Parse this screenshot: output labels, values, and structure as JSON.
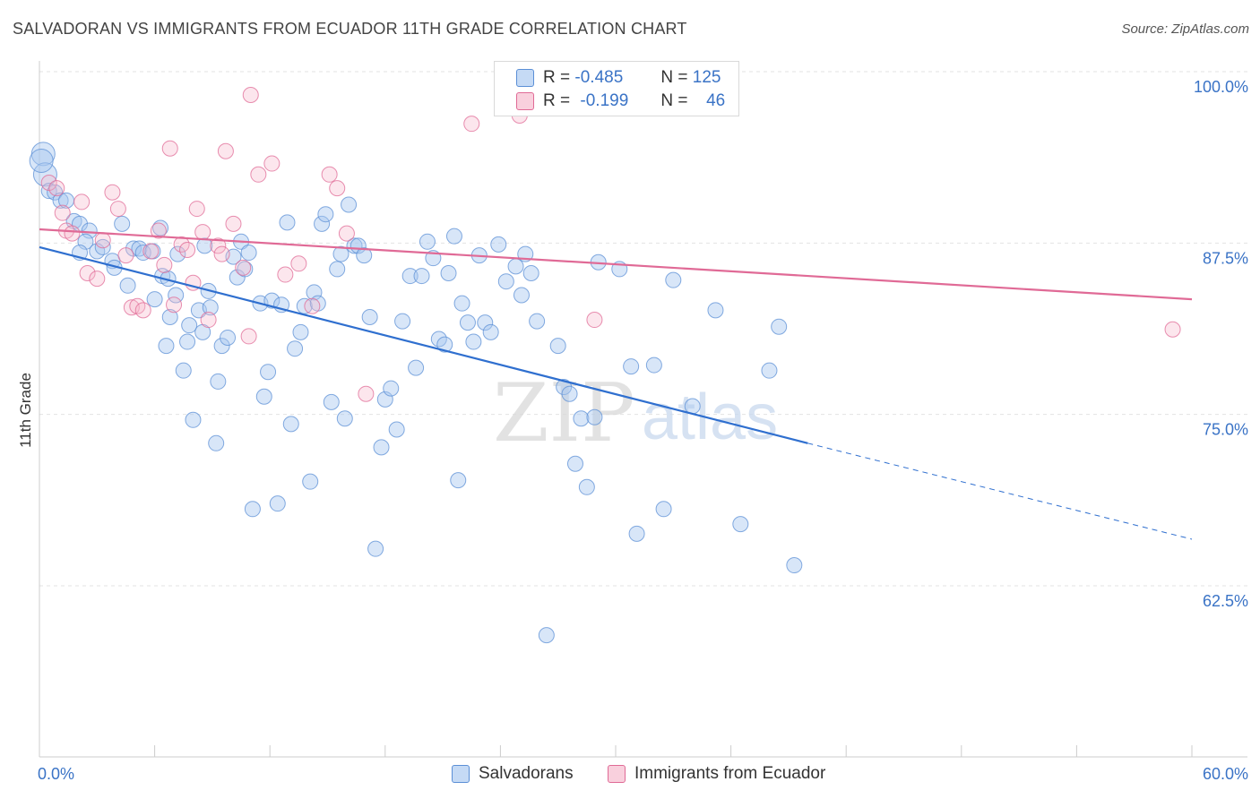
{
  "header": {
    "title": "SALVADORAN VS IMMIGRANTS FROM ECUADOR 11TH GRADE CORRELATION CHART",
    "source": "Source: ZipAtlas.com"
  },
  "watermark": {
    "zip": "ZIP",
    "atlas": "atlas"
  },
  "stats_legend": [
    {
      "r_label": "R =",
      "r_value": "-0.485",
      "n_label": "N =",
      "n_value": "125",
      "color": "#a9c8f0"
    },
    {
      "r_label": "R =",
      "r_value": "-0.199",
      "n_label": "N =",
      "n_value": "46",
      "color": "#f5b8cb"
    }
  ],
  "chart_data": {
    "type": "scatter",
    "title": "SALVADORAN VS IMMIGRANTS FROM ECUADOR 11TH GRADE CORRELATION CHART",
    "xlabel": "",
    "ylabel": "11th Grade",
    "xlim": [
      0,
      60
    ],
    "ylim": [
      50,
      102
    ],
    "x_tick_labels": [
      "0.0%",
      "60.0%"
    ],
    "y_ticks": [
      62.5,
      75.0,
      87.5,
      100.0
    ],
    "y_tick_labels": [
      "62.5%",
      "75.0%",
      "87.5%",
      "100.0%"
    ],
    "grid": true,
    "legend_position": "bottom",
    "series": [
      {
        "name": "Salvadorans",
        "color": "#5b8fd6",
        "fill": "#a9c8f0",
        "trend": {
          "x0": 0,
          "y0": 87.2,
          "x1": 40,
          "y1": 72.9,
          "dash_to_x": 60,
          "dash_to_y": 65.9
        },
        "points": [
          [
            0.2,
            94.0
          ],
          [
            0.3,
            92.5
          ],
          [
            0.5,
            91.3
          ],
          [
            0.8,
            91.2
          ],
          [
            1.1,
            90.6
          ],
          [
            1.4,
            90.6
          ],
          [
            1.8,
            89.1
          ],
          [
            2.1,
            88.9
          ],
          [
            2.6,
            88.4
          ],
          [
            2.4,
            87.6
          ],
          [
            2.1,
            86.8
          ],
          [
            3.0,
            86.9
          ],
          [
            3.3,
            87.2
          ],
          [
            3.8,
            86.2
          ],
          [
            3.9,
            85.7
          ],
          [
            4.3,
            88.9
          ],
          [
            4.6,
            84.4
          ],
          [
            4.9,
            87.1
          ],
          [
            5.2,
            87.1
          ],
          [
            5.4,
            86.8
          ],
          [
            5.9,
            86.9
          ],
          [
            6.0,
            83.4
          ],
          [
            6.3,
            88.6
          ],
          [
            6.6,
            80.0
          ],
          [
            6.4,
            85.1
          ],
          [
            6.7,
            84.9
          ],
          [
            6.8,
            82.1
          ],
          [
            7.1,
            83.7
          ],
          [
            7.2,
            86.7
          ],
          [
            7.5,
            78.2
          ],
          [
            7.7,
            80.3
          ],
          [
            7.8,
            81.5
          ],
          [
            8.0,
            74.6
          ],
          [
            8.3,
            82.6
          ],
          [
            8.5,
            81.0
          ],
          [
            8.6,
            87.3
          ],
          [
            8.8,
            84.0
          ],
          [
            8.9,
            82.8
          ],
          [
            9.2,
            72.9
          ],
          [
            9.3,
            77.4
          ],
          [
            9.5,
            80.0
          ],
          [
            9.8,
            80.6
          ],
          [
            10.1,
            86.5
          ],
          [
            10.3,
            85.0
          ],
          [
            10.5,
            87.6
          ],
          [
            10.7,
            85.6
          ],
          [
            10.9,
            86.8
          ],
          [
            11.1,
            68.1
          ],
          [
            11.5,
            83.1
          ],
          [
            11.7,
            76.3
          ],
          [
            11.9,
            78.1
          ],
          [
            12.1,
            83.3
          ],
          [
            12.4,
            68.5
          ],
          [
            12.6,
            83.0
          ],
          [
            12.9,
            89.0
          ],
          [
            13.1,
            74.3
          ],
          [
            13.3,
            79.8
          ],
          [
            13.6,
            81.0
          ],
          [
            13.8,
            82.9
          ],
          [
            14.1,
            70.1
          ],
          [
            14.3,
            83.9
          ],
          [
            14.5,
            83.1
          ],
          [
            14.7,
            88.9
          ],
          [
            14.9,
            89.6
          ],
          [
            15.2,
            75.9
          ],
          [
            15.5,
            85.6
          ],
          [
            15.7,
            86.7
          ],
          [
            15.9,
            74.7
          ],
          [
            16.1,
            90.3
          ],
          [
            16.4,
            87.3
          ],
          [
            16.6,
            87.3
          ],
          [
            16.9,
            86.6
          ],
          [
            17.2,
            82.1
          ],
          [
            17.5,
            65.2
          ],
          [
            17.8,
            72.6
          ],
          [
            18.0,
            76.1
          ],
          [
            18.3,
            76.9
          ],
          [
            18.6,
            73.9
          ],
          [
            18.9,
            81.8
          ],
          [
            19.3,
            85.1
          ],
          [
            19.6,
            78.4
          ],
          [
            19.9,
            85.1
          ],
          [
            20.2,
            87.6
          ],
          [
            20.5,
            86.4
          ],
          [
            20.8,
            80.5
          ],
          [
            21.1,
            80.1
          ],
          [
            21.3,
            85.3
          ],
          [
            21.6,
            88.0
          ],
          [
            21.8,
            70.2
          ],
          [
            22.0,
            83.1
          ],
          [
            22.3,
            81.7
          ],
          [
            22.6,
            80.3
          ],
          [
            22.9,
            86.6
          ],
          [
            23.2,
            81.7
          ],
          [
            23.5,
            81.0
          ],
          [
            23.9,
            87.4
          ],
          [
            24.3,
            84.7
          ],
          [
            24.8,
            85.8
          ],
          [
            25.1,
            83.7
          ],
          [
            25.3,
            86.7
          ],
          [
            25.6,
            85.3
          ],
          [
            25.9,
            81.8
          ],
          [
            26.2,
            100.1
          ],
          [
            26.4,
            58.9
          ],
          [
            27.0,
            80.0
          ],
          [
            27.3,
            77.0
          ],
          [
            27.6,
            76.5
          ],
          [
            27.9,
            71.4
          ],
          [
            28.2,
            74.7
          ],
          [
            28.5,
            69.7
          ],
          [
            28.9,
            74.8
          ],
          [
            29.1,
            86.1
          ],
          [
            30.2,
            85.6
          ],
          [
            30.8,
            78.5
          ],
          [
            31.1,
            66.3
          ],
          [
            32.0,
            78.6
          ],
          [
            32.5,
            68.1
          ],
          [
            33.0,
            84.8
          ],
          [
            34.0,
            75.6
          ],
          [
            35.2,
            82.6
          ],
          [
            36.5,
            67.0
          ],
          [
            38.0,
            78.2
          ],
          [
            38.5,
            81.4
          ],
          [
            39.3,
            64.0
          ],
          [
            0.1,
            93.5
          ]
        ]
      },
      {
        "name": "Immigrants from Ecuador",
        "color": "#e06a96",
        "fill": "#f5b8cb",
        "trend": {
          "x0": 0,
          "y0": 88.5,
          "x1": 60,
          "y1": 83.4
        },
        "points": [
          [
            0.5,
            91.9
          ],
          [
            0.9,
            91.5
          ],
          [
            1.2,
            89.7
          ],
          [
            1.4,
            88.4
          ],
          [
            1.7,
            88.2
          ],
          [
            2.2,
            90.5
          ],
          [
            2.5,
            85.3
          ],
          [
            3.0,
            84.9
          ],
          [
            3.3,
            87.7
          ],
          [
            3.8,
            91.2
          ],
          [
            4.1,
            90.0
          ],
          [
            4.5,
            86.6
          ],
          [
            4.8,
            82.8
          ],
          [
            5.1,
            82.9
          ],
          [
            5.4,
            82.6
          ],
          [
            5.8,
            86.9
          ],
          [
            6.2,
            88.4
          ],
          [
            6.5,
            85.9
          ],
          [
            6.8,
            94.4
          ],
          [
            7.0,
            83.0
          ],
          [
            7.4,
            87.4
          ],
          [
            7.7,
            87.0
          ],
          [
            8.0,
            84.6
          ],
          [
            8.2,
            90.0
          ],
          [
            8.5,
            88.3
          ],
          [
            8.8,
            81.9
          ],
          [
            9.3,
            87.3
          ],
          [
            9.5,
            86.7
          ],
          [
            9.7,
            94.2
          ],
          [
            10.1,
            88.9
          ],
          [
            10.6,
            85.7
          ],
          [
            10.9,
            80.7
          ],
          [
            11.0,
            98.3
          ],
          [
            11.4,
            92.5
          ],
          [
            12.1,
            93.3
          ],
          [
            12.8,
            85.2
          ],
          [
            13.5,
            86.0
          ],
          [
            14.2,
            82.9
          ],
          [
            15.1,
            92.5
          ],
          [
            15.5,
            91.5
          ],
          [
            16.0,
            88.2
          ],
          [
            17.0,
            76.5
          ],
          [
            22.5,
            96.2
          ],
          [
            25.0,
            96.8
          ],
          [
            28.9,
            81.9
          ],
          [
            59.0,
            81.2
          ]
        ]
      }
    ]
  }
}
